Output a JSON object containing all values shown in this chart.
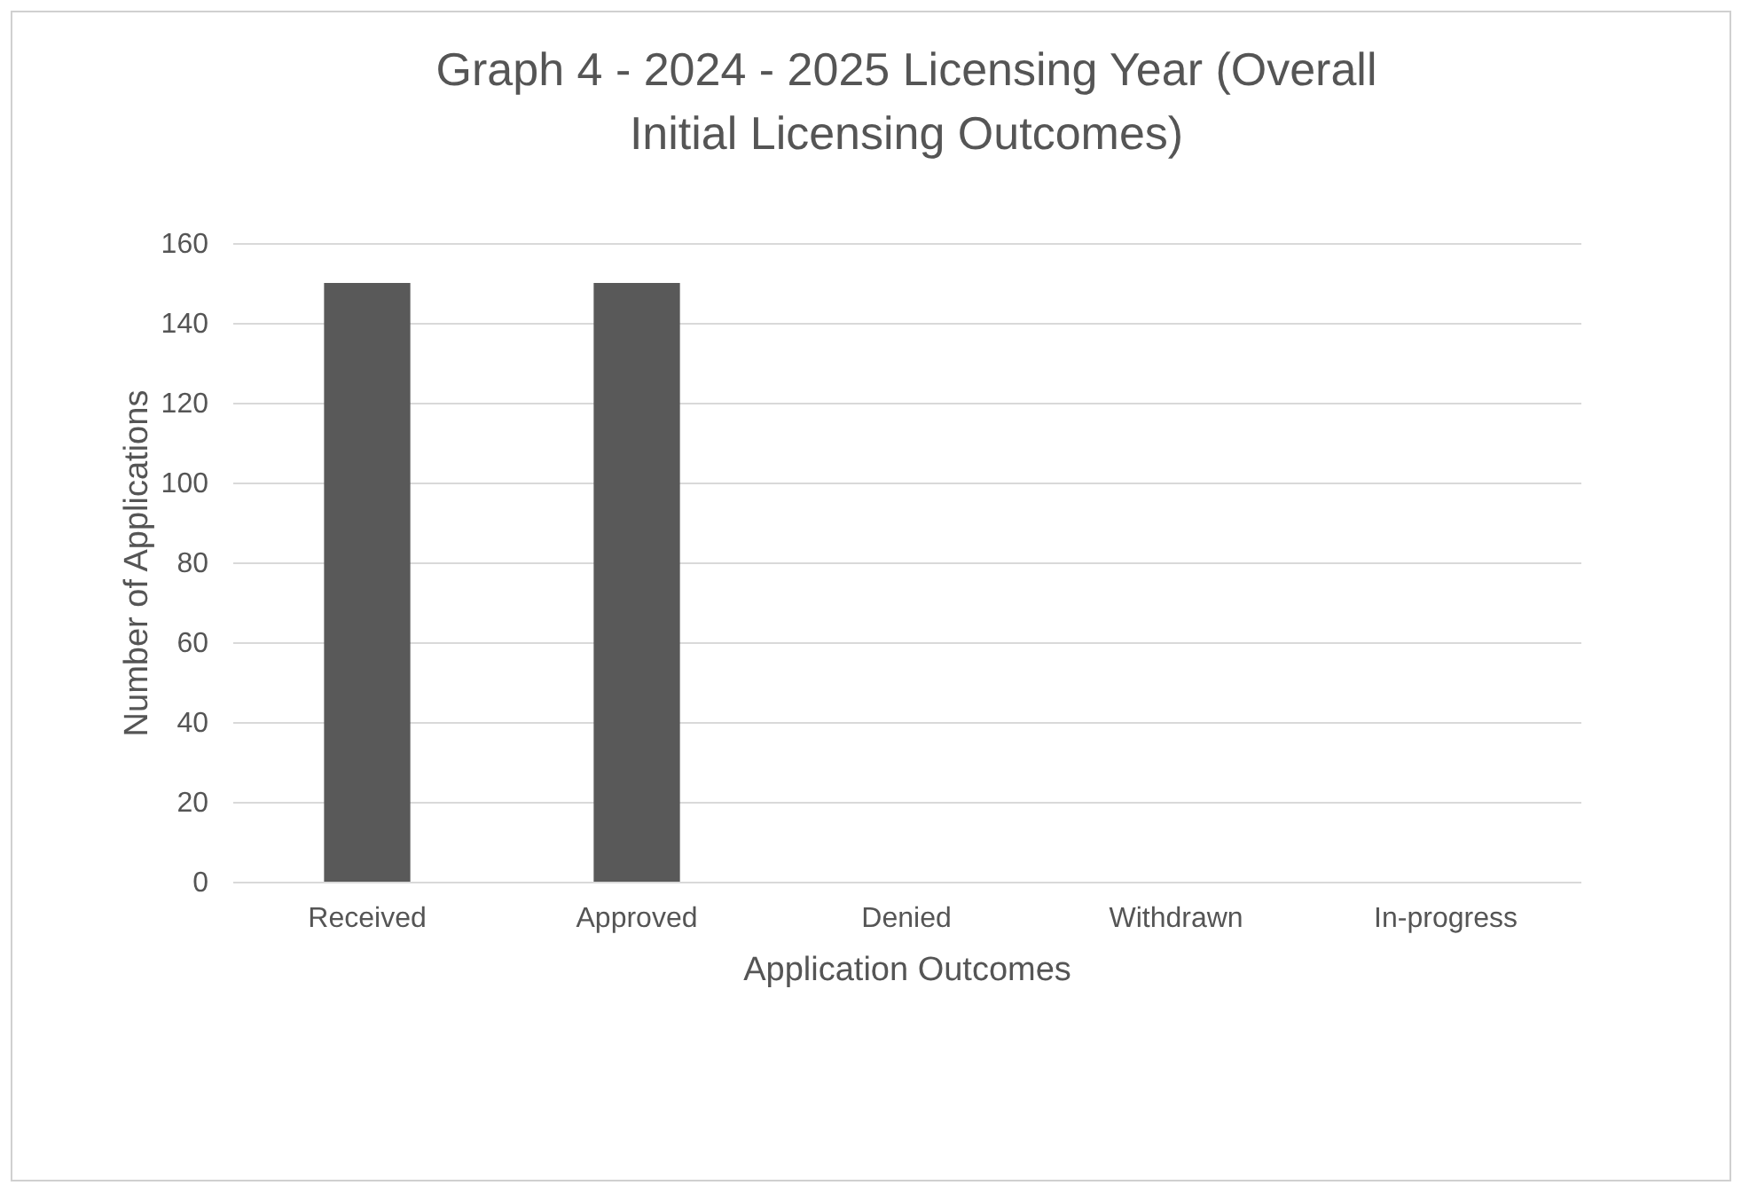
{
  "chart_data": {
    "type": "bar",
    "title": [
      "Graph 4 - 2024 - 2025 Licensing Year (Overall",
      "Initial Licensing Outcomes)"
    ],
    "xlabel": "Application Outcomes",
    "ylabel": "Number of Applications",
    "categories": [
      "Received",
      "Approved",
      "Denied",
      "Withdrawn",
      "In-progress"
    ],
    "values": [
      150,
      150,
      0,
      0,
      0
    ],
    "color": "#595959",
    "ylim": [
      0,
      160
    ],
    "yticks": [
      0,
      20,
      40,
      60,
      80,
      100,
      120,
      140,
      160
    ],
    "grid": "y"
  }
}
